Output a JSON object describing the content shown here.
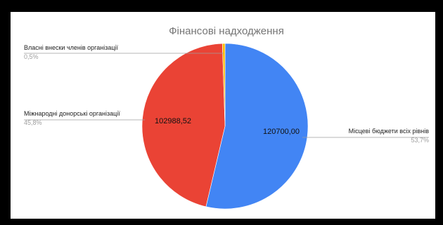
{
  "chart_data": {
    "type": "pie",
    "title": "Фінансові надходження",
    "slices": [
      {
        "label": "Місцеві бюджети всіх рівнів",
        "percent_label": "53,7%",
        "value": 120700.0,
        "value_label": "120700,00",
        "color": "#4285f4"
      },
      {
        "label": "Міжнародні донорські організації",
        "percent_label": "45,8%",
        "value": 102988.52,
        "value_label": "102988,52",
        "color": "#ea4335"
      },
      {
        "label": "Власні внески членів організації",
        "percent_label": "0,5%",
        "value": 1123.78,
        "value_label": "",
        "color": "#fbbc04"
      }
    ],
    "legend": "callout labels"
  },
  "colors": {
    "frame": "#000000",
    "background": "#ffffff",
    "title": "#757575",
    "label": "#222222",
    "percent": "#9e9e9e",
    "leader": "#9e9e9e"
  }
}
